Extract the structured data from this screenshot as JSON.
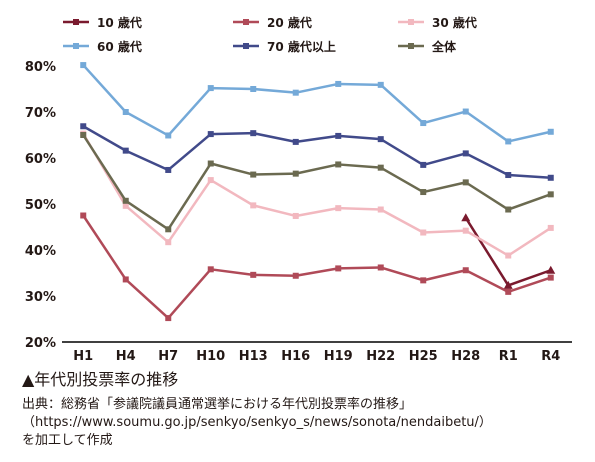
{
  "chart_data": {
    "type": "line",
    "x": [
      "H1",
      "H4",
      "H7",
      "H10",
      "H13",
      "H16",
      "H19",
      "H22",
      "H25",
      "H28",
      "R1",
      "R4"
    ],
    "x_plot_points": [
      "H1",
      "H4",
      "H7",
      "H10",
      "H13",
      "H16",
      "H19",
      "H22",
      "H25",
      "H28",
      "R1",
      "R4"
    ],
    "ylim": [
      20,
      80
    ],
    "yticks": [
      "20%",
      "30%",
      "40%",
      "50%",
      "60%",
      "70%",
      "80%"
    ],
    "series": [
      {
        "name": "10 歳代",
        "color": "#7a1a2e",
        "marker": "triangle",
        "values": [
          null,
          null,
          null,
          null,
          null,
          null,
          null,
          null,
          null,
          47.0,
          32.3,
          35.6
        ]
      },
      {
        "name": "20 歳代",
        "color": "#b04a58",
        "marker": "square",
        "values": [
          47.5,
          33.6,
          25.2,
          35.8,
          34.6,
          34.4,
          36.0,
          36.2,
          33.4,
          35.6,
          30.9,
          34.0
        ]
      },
      {
        "name": "30 歳代",
        "color": "#f2b8bf",
        "marker": "square",
        "values": [
          65.3,
          49.6,
          41.7,
          55.2,
          49.7,
          47.4,
          49.1,
          48.8,
          43.8,
          44.2,
          38.8,
          44.8
        ]
      },
      {
        "name": "60 歳代",
        "color": "#74a9d8",
        "marker": "square",
        "values": [
          80.2,
          70.0,
          64.9,
          75.2,
          75.0,
          74.2,
          76.1,
          75.9,
          67.6,
          70.1,
          63.6,
          65.7
        ]
      },
      {
        "name": "70 歳代以上",
        "color": "#414a8a",
        "marker": "square",
        "values": [
          66.9,
          61.6,
          57.4,
          65.2,
          65.4,
          63.5,
          64.8,
          64.1,
          58.5,
          61.0,
          56.3,
          55.7
        ]
      },
      {
        "name": "全体",
        "color": "#6b6a50",
        "marker": "square",
        "values": [
          65.0,
          50.7,
          44.5,
          58.8,
          56.4,
          56.6,
          58.6,
          57.9,
          52.6,
          54.7,
          48.8,
          52.1
        ]
      }
    ]
  },
  "caption": "▲年代別投票率の推移",
  "source_line1": "出典：総務省「参議院議員通常選挙における年代別投票率の推移」",
  "source_line2": "（https://www.soumu.go.jp/senkyo/senkyo_s/news/sonota/nendaibetu/）",
  "source_line3": "を加工して作成"
}
